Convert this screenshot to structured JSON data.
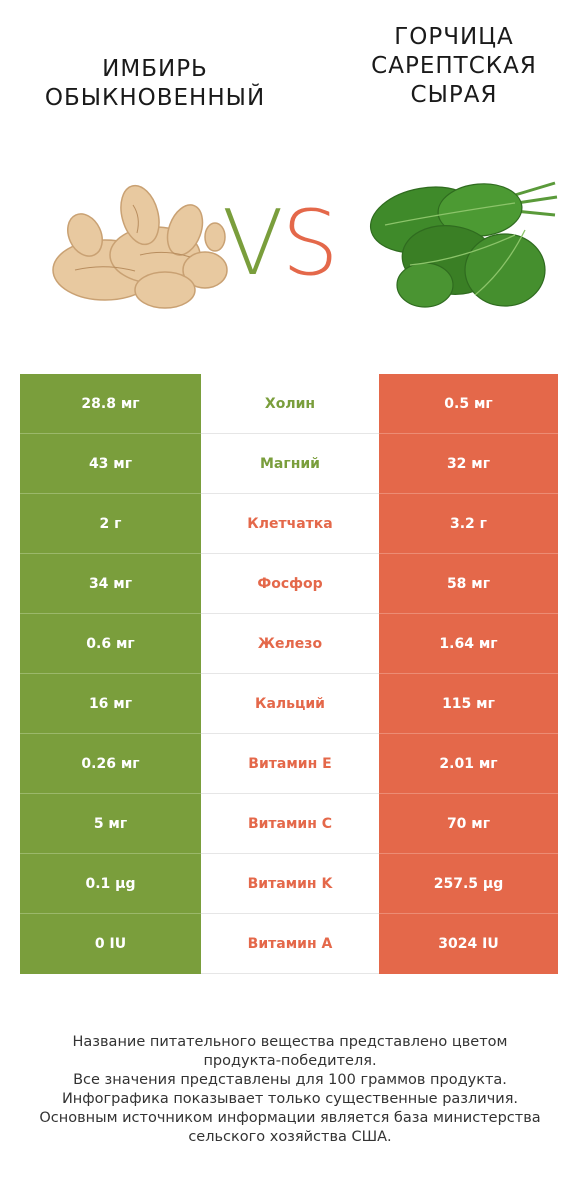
{
  "header": {
    "left_title_lines": [
      "ИМБИРЬ",
      "ОБЫКНОВЕННЫЙ"
    ],
    "right_title_lines": [
      "ГОРЧИЦА",
      "САРЕПТСКАЯ",
      "СЫРАЯ"
    ],
    "vs_v": "V",
    "vs_s": "S"
  },
  "colors": {
    "winner_left": "#7a9e3c",
    "winner_right": "#e4684a"
  },
  "rows": [
    {
      "left": "28.8 мг",
      "name": "Холин",
      "right": "0.5 мг",
      "winner": "left"
    },
    {
      "left": "43 мг",
      "name": "Магний",
      "right": "32 мг",
      "winner": "left"
    },
    {
      "left": "2 г",
      "name": "Клетчатка",
      "right": "3.2 г",
      "winner": "right"
    },
    {
      "left": "34 мг",
      "name": "Фосфор",
      "right": "58 мг",
      "winner": "right"
    },
    {
      "left": "0.6 мг",
      "name": "Железо",
      "right": "1.64 мг",
      "winner": "right"
    },
    {
      "left": "16 мг",
      "name": "Кальций",
      "right": "115 мг",
      "winner": "right"
    },
    {
      "left": "0.26 мг",
      "name": "Витамин E",
      "right": "2.01 мг",
      "winner": "right"
    },
    {
      "left": "5 мг",
      "name": "Витамин C",
      "right": "70 мг",
      "winner": "right"
    },
    {
      "left": "0.1 µg",
      "name": "Витамин K",
      "right": "257.5 µg",
      "winner": "right"
    },
    {
      "left": "0 IU",
      "name": "Витамин A",
      "right": "3024 IU",
      "winner": "right"
    }
  ],
  "footer": {
    "lines": [
      "Название питательного вещества представлено цветом",
      "продукта-победителя.",
      "Все значения представлены для 100 граммов продукта.",
      "Инфографика показывает только существенные различия.",
      "Основным источником информации является база министерства",
      "сельского хозяйства США."
    ]
  }
}
